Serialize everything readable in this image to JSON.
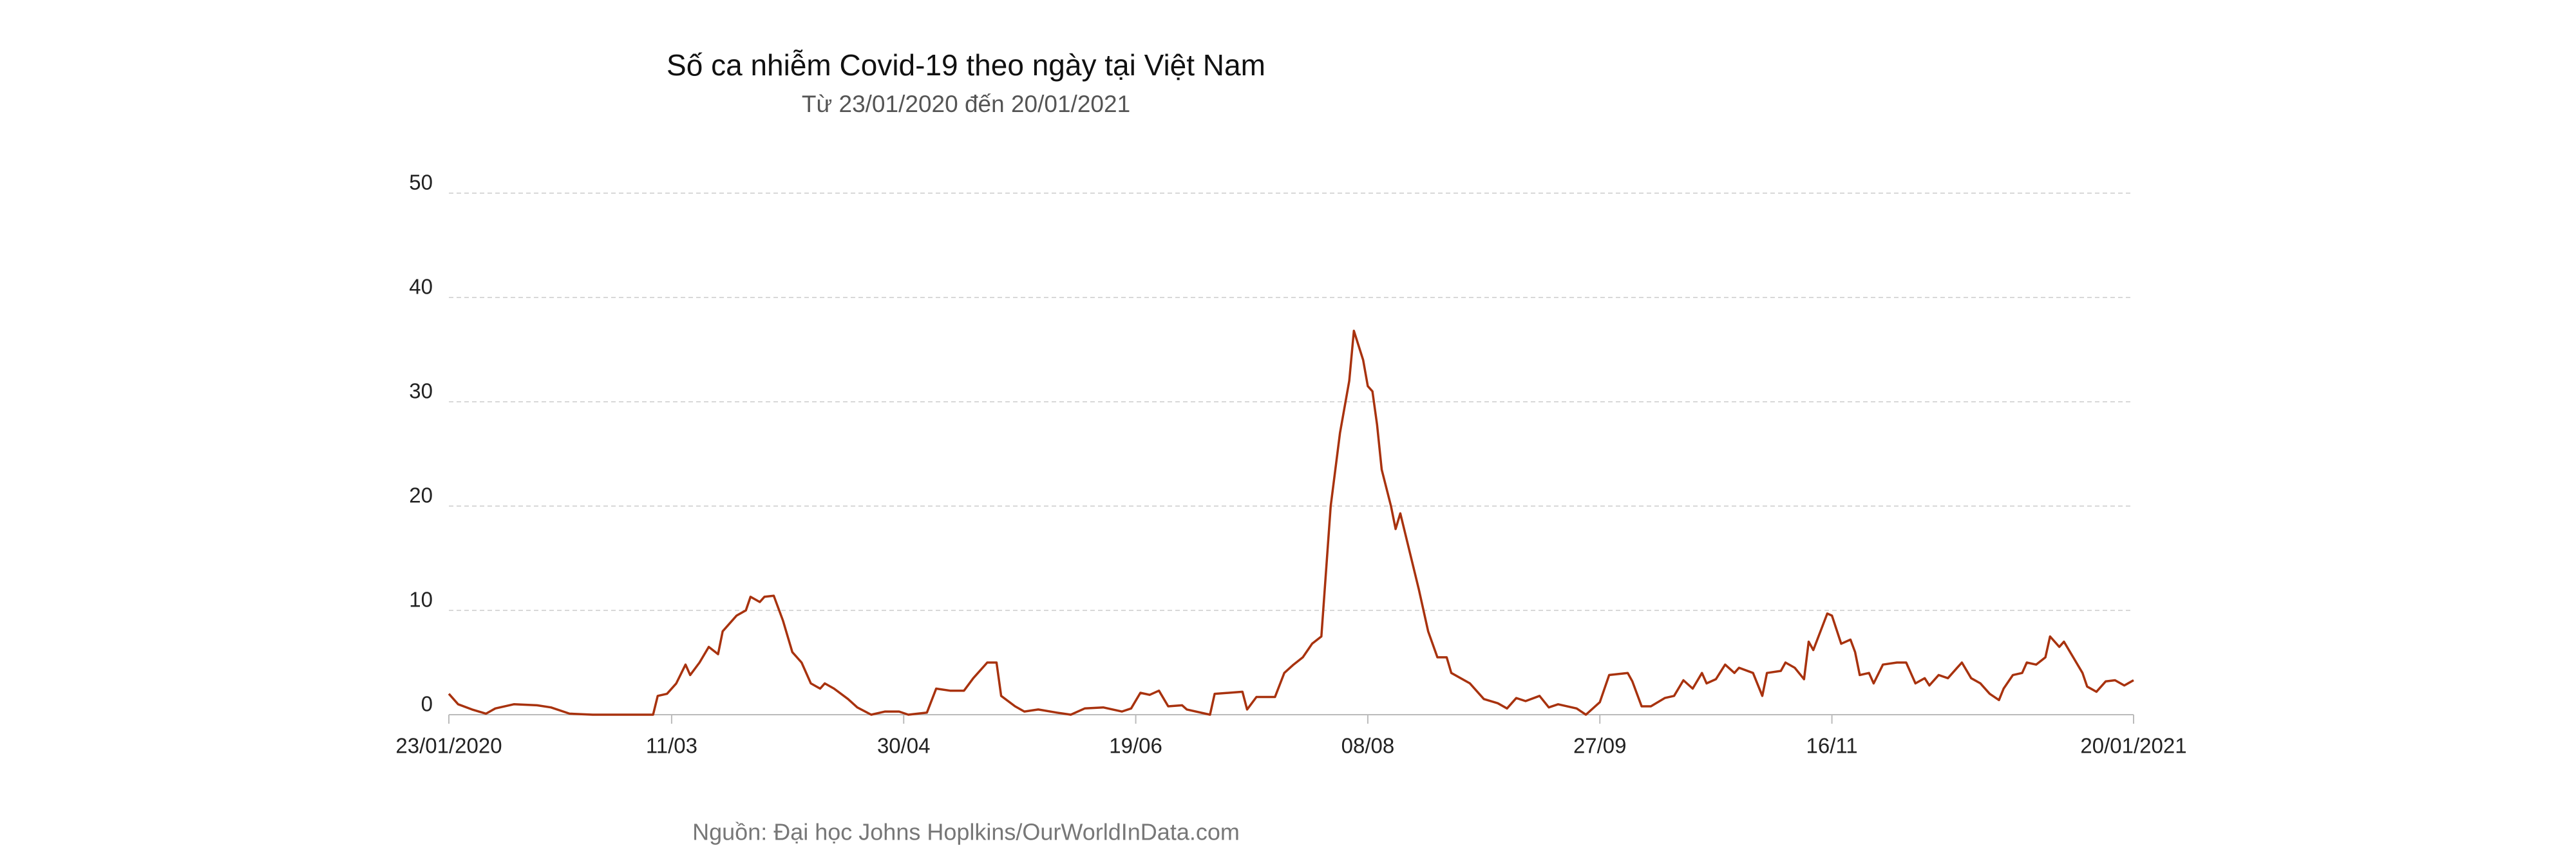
{
  "chart_data": {
    "type": "line",
    "title": "Số ca nhiễm Covid-19 theo ngày tại Việt Nam",
    "subtitle": "Từ 23/01/2020 đến 20/01/2021",
    "source": "Nguồn: Đại học Johns Hoplkins/OurWorldInData.com",
    "grid": true,
    "color": "#a8320e",
    "xlim": [
      "2020-01-23",
      "2021-01-20"
    ],
    "xticks": [
      {
        "value": "2020-01-23",
        "label": "23/01/2020"
      },
      {
        "value": "2020-03-11",
        "label": "11/03"
      },
      {
        "value": "2020-04-30",
        "label": "30/04"
      },
      {
        "value": "2020-06-19",
        "label": "19/06"
      },
      {
        "value": "2020-08-08",
        "label": "08/08"
      },
      {
        "value": "2020-09-27",
        "label": "27/09"
      },
      {
        "value": "2020-11-16",
        "label": "16/11"
      },
      {
        "value": "2021-01-20",
        "label": "20/01/2021"
      }
    ],
    "ylim": [
      0,
      50
    ],
    "yticks": [
      0,
      10,
      20,
      30,
      40,
      50
    ],
    "x": [
      "2020-01-23",
      "2020-01-25",
      "2020-01-28",
      "2020-01-31",
      "2020-02-02",
      "2020-02-06",
      "2020-02-11",
      "2020-02-14",
      "2020-02-18",
      "2020-02-23",
      "2020-03-07",
      "2020-03-08",
      "2020-03-10",
      "2020-03-12",
      "2020-03-14",
      "2020-03-15",
      "2020-03-17",
      "2020-03-19",
      "2020-03-21",
      "2020-03-22",
      "2020-03-25",
      "2020-03-27",
      "2020-03-28",
      "2020-03-30",
      "2020-03-31",
      "2020-04-02",
      "2020-04-04",
      "2020-04-06",
      "2020-04-08",
      "2020-04-10",
      "2020-04-12",
      "2020-04-13",
      "2020-04-15",
      "2020-04-18",
      "2020-04-20",
      "2020-04-23",
      "2020-04-26",
      "2020-04-29",
      "2020-05-01",
      "2020-05-05",
      "2020-05-07",
      "2020-05-10",
      "2020-05-13",
      "2020-05-15",
      "2020-05-18",
      "2020-05-20",
      "2020-05-21",
      "2020-05-24",
      "2020-05-26",
      "2020-05-29",
      "2020-06-02",
      "2020-06-05",
      "2020-06-08",
      "2020-06-12",
      "2020-06-16",
      "2020-06-18",
      "2020-06-20",
      "2020-06-22",
      "2020-06-24",
      "2020-06-26",
      "2020-06-29",
      "2020-06-30",
      "2020-07-05",
      "2020-07-06",
      "2020-07-12",
      "2020-07-13",
      "2020-07-15",
      "2020-07-19",
      "2020-07-21",
      "2020-07-23",
      "2020-07-25",
      "2020-07-27",
      "2020-07-29",
      "2020-07-31",
      "2020-08-02",
      "2020-08-04",
      "2020-08-05",
      "2020-08-07",
      "2020-08-08",
      "2020-08-09",
      "2020-08-10",
      "2020-08-11",
      "2020-08-13",
      "2020-08-14",
      "2020-08-15",
      "2020-08-19",
      "2020-08-21",
      "2020-08-23",
      "2020-08-25",
      "2020-08-26",
      "2020-08-30",
      "2020-09-02",
      "2020-09-05",
      "2020-09-07",
      "2020-09-09",
      "2020-09-11",
      "2020-09-14",
      "2020-09-16",
      "2020-09-18",
      "2020-09-22",
      "2020-09-24",
      "2020-09-27",
      "2020-09-29",
      "2020-10-03",
      "2020-10-04",
      "2020-10-06",
      "2020-10-08",
      "2020-10-11",
      "2020-10-13",
      "2020-10-15",
      "2020-10-17",
      "2020-10-19",
      "2020-10-20",
      "2020-10-22",
      "2020-10-24",
      "2020-10-26",
      "2020-10-27",
      "2020-10-30",
      "2020-11-01",
      "2020-11-02",
      "2020-11-05",
      "2020-11-06",
      "2020-11-08",
      "2020-11-10",
      "2020-11-11",
      "2020-11-12",
      "2020-11-15",
      "2020-11-16",
      "2020-11-18",
      "2020-11-20",
      "2020-11-21",
      "2020-11-22",
      "2020-11-24",
      "2020-11-25",
      "2020-11-27",
      "2020-11-30",
      "2020-12-02",
      "2020-12-04",
      "2020-12-06",
      "2020-12-07",
      "2020-12-09",
      "2020-12-11",
      "2020-12-13",
      "2020-12-14",
      "2020-12-16",
      "2020-12-18",
      "2020-12-20",
      "2020-12-22",
      "2020-12-23",
      "2020-12-25",
      "2020-12-27",
      "2020-12-28",
      "2020-12-30",
      "2021-01-01",
      "2021-01-02",
      "2021-01-04",
      "2021-01-05",
      "2021-01-07",
      "2021-01-09",
      "2021-01-10",
      "2021-01-12",
      "2021-01-14",
      "2021-01-16",
      "2021-01-18",
      "2021-01-20"
    ],
    "values": [
      2,
      1,
      0.5,
      0.1,
      0.6,
      1,
      0.9,
      0.7,
      0.1,
      0,
      0,
      1.8,
      2,
      3,
      4.8,
      3.8,
      5,
      6.5,
      5.8,
      8,
      9.5,
      10,
      11.3,
      10.8,
      11.3,
      11.4,
      9,
      6,
      5,
      3,
      2.5,
      3,
      2.5,
      1.5,
      0.7,
      0,
      0.3,
      0.3,
      0,
      0.2,
      2.5,
      2.3,
      2.3,
      3.5,
      5,
      5,
      1.8,
      0.8,
      0.3,
      0.5,
      0.2,
      0,
      0.6,
      0.7,
      0.3,
      0.6,
      2.1,
      1.9,
      2.3,
      0.8,
      0.9,
      0.5,
      0,
      2,
      2.2,
      0.5,
      1.7,
      1.7,
      4,
      4.8,
      5.5,
      6.8,
      7.5,
      20,
      27,
      32,
      36.8,
      34,
      31.5,
      31,
      27.8,
      23.5,
      20,
      17.8,
      19.3,
      12,
      8,
      5.5,
      5.5,
      4,
      3,
      1.5,
      1.1,
      0.6,
      1.6,
      1.3,
      1.8,
      0.7,
      1,
      0.6,
      0,
      1.2,
      3.8,
      4,
      3.2,
      0.8,
      0.8,
      1.6,
      1.8,
      3.3,
      2.5,
      4,
      3,
      3.4,
      4.8,
      4,
      4.5,
      4,
      1.8,
      4,
      4.2,
      5,
      4.5,
      3.4,
      7,
      6.2,
      9.7,
      9.5,
      6.8,
      7.2,
      6,
      3.8,
      4,
      3,
      4.8,
      5,
      5,
      3,
      3.5,
      2.8,
      3.8,
      3.5,
      4.5,
      5,
      3.5,
      3,
      2,
      1.4,
      2.5,
      3.8,
      4,
      5,
      4.8,
      5.5,
      7.5,
      6.5,
      7,
      5.5,
      4,
      2.7,
      2.2,
      3.2,
      3.3,
      2.8,
      3.3
    ]
  }
}
